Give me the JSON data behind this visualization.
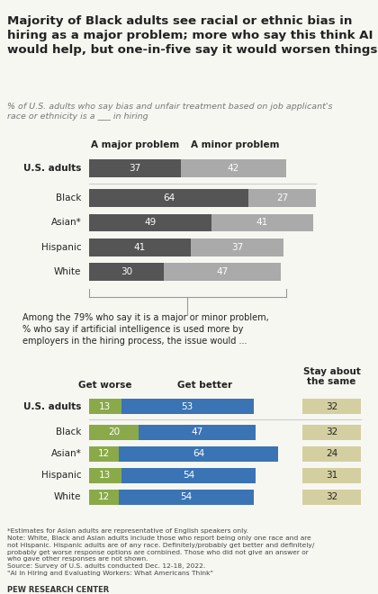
{
  "title": "Majority of Black adults see racial or ethnic bias in\nhiring as a major problem; more who say this think AI\nwould help, but one-in-five say it would worsen things",
  "subtitle": "% of U.S. adults who say bias and unfair treatment based on job applicant's\nrace or ethnicity is a ___ in hiring",
  "top_chart": {
    "categories": [
      "U.S. adults",
      "Black",
      "Asian*",
      "Hispanic",
      "White"
    ],
    "major": [
      37,
      64,
      49,
      41,
      30
    ],
    "minor": [
      42,
      27,
      41,
      37,
      47
    ],
    "color_major": "#555555",
    "color_minor": "#aaaaaa",
    "header_major": "A major problem",
    "header_minor": "A minor problem"
  },
  "mid_text": "Among the 79% who say it is a major or minor problem,\n% who say if artificial intelligence is used more by\nemployers in the hiring process, the issue would ...",
  "bottom_chart": {
    "categories": [
      "U.S. adults",
      "Black",
      "Asian*",
      "Hispanic",
      "White"
    ],
    "worse": [
      13,
      20,
      12,
      13,
      12
    ],
    "better": [
      53,
      47,
      64,
      54,
      54
    ],
    "same": [
      32,
      32,
      24,
      31,
      32
    ],
    "color_worse": "#8aaa4a",
    "color_better": "#3a74b5",
    "color_same": "#d4cfa0",
    "header_worse": "Get worse",
    "header_better": "Get better",
    "header_same": "Stay about\nthe same"
  },
  "footnote": "*Estimates for Asian adults are representative of English speakers only.\nNote: White, Black and Asian adults include those who report being only one race and are\nnot Hispanic. Hispanic adults are of any race. Definitely/probably get better and definitely/\nprobably get worse response options are combined. Those who did not give an answer or\nwho gave other responses are not shown.\nSource: Survey of U.S. adults conducted Dec. 12-18, 2022.\n\"AI in Hiring and Evaluating Workers: What Americans Think\"",
  "source_line": "PEW RESEARCH CENTER",
  "bg_color": "#f7f7f2",
  "text_color": "#222222"
}
